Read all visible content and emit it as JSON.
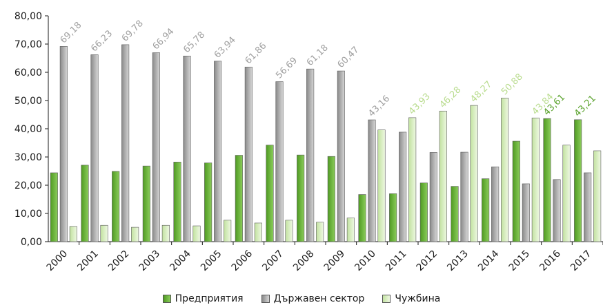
{
  "chart_data": {
    "type": "bar",
    "categories": [
      "2000",
      "2001",
      "2002",
      "2003",
      "2004",
      "2005",
      "2006",
      "2007",
      "2008",
      "2009",
      "2010",
      "2011",
      "2012",
      "2013",
      "2014",
      "2015",
      "2016",
      "2017"
    ],
    "ylim": [
      0,
      80
    ],
    "yticks": [
      "0,00",
      "10,00",
      "20,00",
      "30,00",
      "40,00",
      "50,00",
      "60,00",
      "70,00",
      "80,00"
    ],
    "legend_position": "bottom",
    "series": [
      {
        "name": "Предприятия",
        "color": "#6db33f",
        "values": [
          24.4,
          27.1,
          24.9,
          26.8,
          28.2,
          27.9,
          30.6,
          34.2,
          30.7,
          30.2,
          16.7,
          17.0,
          20.8,
          19.6,
          22.3,
          35.6,
          43.61,
          43.21
        ]
      },
      {
        "name": "Държавен сектор",
        "color": "#a8a8a8",
        "values": [
          69.18,
          66.23,
          69.78,
          66.94,
          65.78,
          63.94,
          61.86,
          56.69,
          61.18,
          60.47,
          43.16,
          38.8,
          31.6,
          31.7,
          26.5,
          20.5,
          22.0,
          24.4
        ]
      },
      {
        "name": "Чужбина",
        "color": "#d4ecb4",
        "values": [
          5.4,
          5.8,
          5.1,
          5.8,
          5.6,
          7.6,
          6.6,
          7.6,
          6.9,
          8.4,
          39.6,
          43.93,
          46.28,
          48.27,
          50.88,
          43.84,
          34.2,
          32.2
        ]
      }
    ],
    "annotations": [
      {
        "category": "2000",
        "series": 1,
        "text": "69,18",
        "color": "#a0a0a0"
      },
      {
        "category": "2001",
        "series": 1,
        "text": "66,23",
        "color": "#a0a0a0"
      },
      {
        "category": "2002",
        "series": 1,
        "text": "69,78",
        "color": "#a0a0a0"
      },
      {
        "category": "2003",
        "series": 1,
        "text": "66,94",
        "color": "#a0a0a0"
      },
      {
        "category": "2004",
        "series": 1,
        "text": "65,78",
        "color": "#a0a0a0"
      },
      {
        "category": "2005",
        "series": 1,
        "text": "63,94",
        "color": "#a0a0a0"
      },
      {
        "category": "2006",
        "series": 1,
        "text": "61,86",
        "color": "#a0a0a0"
      },
      {
        "category": "2007",
        "series": 1,
        "text": "56,69",
        "color": "#a0a0a0"
      },
      {
        "category": "2008",
        "series": 1,
        "text": "61,18",
        "color": "#a0a0a0"
      },
      {
        "category": "2009",
        "series": 1,
        "text": "60,47",
        "color": "#a0a0a0"
      },
      {
        "category": "2010",
        "series": 1,
        "text": "43,16",
        "color": "#a0a0a0"
      },
      {
        "category": "2011",
        "series": 2,
        "text": "43,93",
        "color": "#b9dc8e"
      },
      {
        "category": "2012",
        "series": 2,
        "text": "46,28",
        "color": "#b9dc8e"
      },
      {
        "category": "2013",
        "series": 2,
        "text": "48,27",
        "color": "#b9dc8e"
      },
      {
        "category": "2014",
        "series": 2,
        "text": "50,88",
        "color": "#b9dc8e"
      },
      {
        "category": "2015",
        "series": 2,
        "text": "43,84",
        "color": "#b9dc8e"
      },
      {
        "category": "2016",
        "series": 0,
        "text": "43,61",
        "color": "#5aa22c"
      },
      {
        "category": "2017",
        "series": 0,
        "text": "43,21",
        "color": "#5aa22c"
      }
    ]
  }
}
